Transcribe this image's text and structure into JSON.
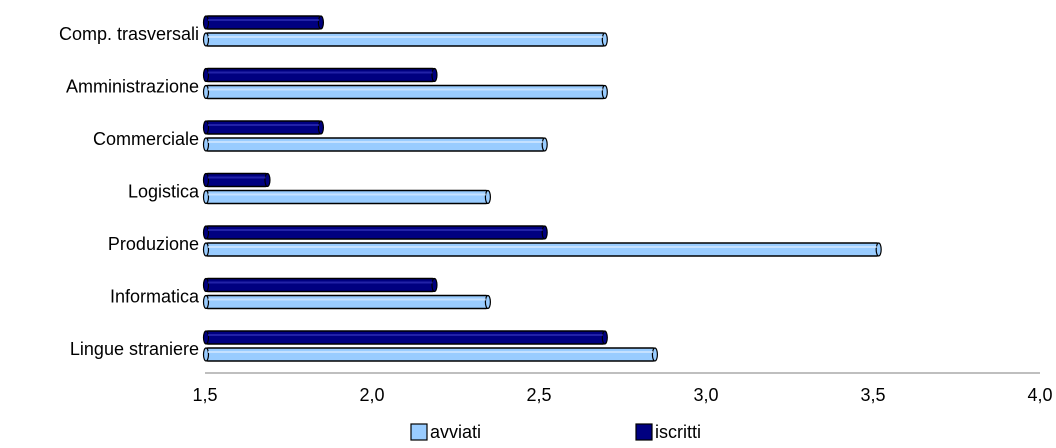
{
  "chart_data": {
    "type": "bar",
    "orientation": "horizontal",
    "categories": [
      "Comp. trasversali",
      "Amministrazione",
      "Commerciale",
      "Logistica",
      "Produzione",
      "Informatica",
      "Lingue straniere"
    ],
    "series": [
      {
        "name": "avviati",
        "values": [
          2.7,
          2.7,
          2.52,
          2.35,
          3.52,
          2.35,
          2.85
        ],
        "color": "#99ccff"
      },
      {
        "name": "iscritti",
        "values": [
          1.85,
          2.19,
          1.85,
          1.69,
          2.52,
          2.19,
          2.7
        ],
        "color": "#000080"
      }
    ],
    "xlim": [
      1.5,
      4.0
    ],
    "xticks": [
      "1,5",
      "2,0",
      "2,5",
      "3,0",
      "3,5",
      "4,0"
    ],
    "grid": false,
    "legend_position": "bottom"
  }
}
